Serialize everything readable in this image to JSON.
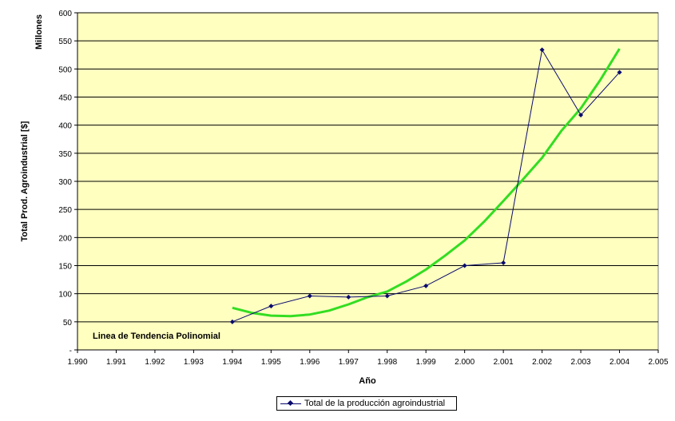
{
  "chart_data": {
    "type": "line",
    "ylabel": "Total Prod. Agroindustrial [$]",
    "yunit": "Millones",
    "xlabel": "Año",
    "annotation": "Linea de Tendencia Polinomial",
    "xlim": [
      1990,
      2005
    ],
    "ylim": [
      0,
      600
    ],
    "x_ticks": [
      "1.990",
      "1.991",
      "1.992",
      "1.993",
      "1.994",
      "1.995",
      "1.996",
      "1.997",
      "1.998",
      "1.999",
      "2.000",
      "2.001",
      "2.002",
      "2.003",
      "2.004",
      "2.005"
    ],
    "y_ticks": [
      "-",
      "50",
      "100",
      "150",
      "200",
      "250",
      "300",
      "350",
      "400",
      "450",
      "500",
      "550",
      "600"
    ],
    "grid": "horizontal",
    "plot_background": "#ffffc0",
    "series": [
      {
        "name": "Total de la producción agroindustrial",
        "color": "#0a0a6e",
        "marker": "diamond",
        "x": [
          1994,
          1995,
          1996,
          1997,
          1998,
          1999,
          2000,
          2001,
          2002,
          2003,
          2004
        ],
        "values": [
          50,
          78,
          96,
          94,
          96,
          114,
          150,
          155,
          534,
          418,
          494
        ]
      }
    ],
    "trendline": {
      "type": "polynomial",
      "color": "#33dd22",
      "x": [
        1994,
        1994.5,
        1995,
        1995.5,
        1996,
        1996.5,
        1997,
        1997.5,
        1998,
        1998.5,
        1999,
        1999.5,
        2000,
        2000.5,
        2001,
        2001.5,
        2002,
        2002.5,
        2003,
        2003.5,
        2004
      ],
      "values": [
        75,
        66,
        61,
        60,
        63,
        70,
        81,
        94,
        104,
        122,
        143,
        168,
        195,
        228,
        265,
        303,
        342,
        390,
        430,
        480,
        536
      ]
    },
    "legend": {
      "position": "bottom",
      "label": "Total de la producción agroindustrial"
    }
  }
}
